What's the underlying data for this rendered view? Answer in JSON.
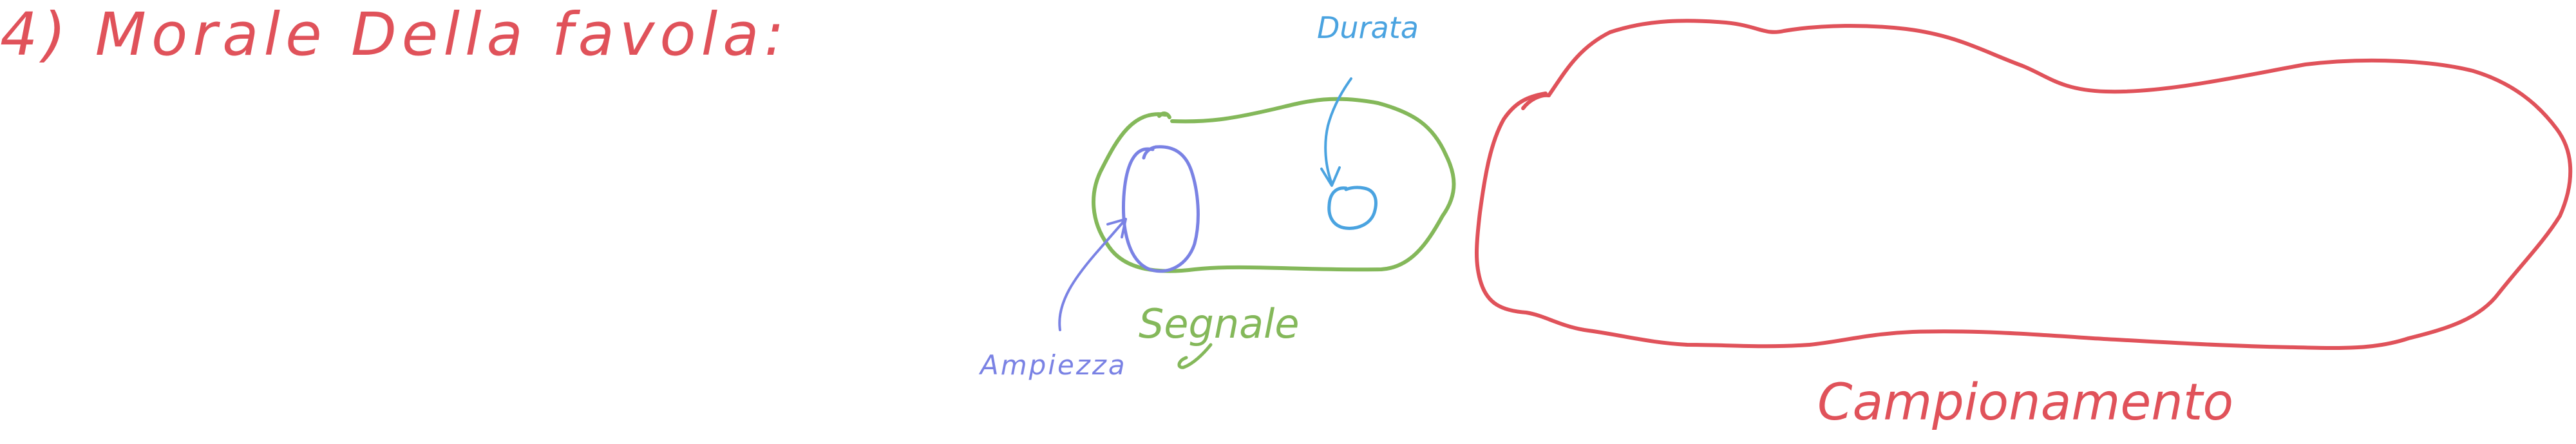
{
  "note": {
    "title": "4) Morale Della favola:",
    "labels": {
      "durata": "Durata",
      "segnale": "Segnale",
      "ampiezza": "Ampiezza",
      "campionamento": "Campionamento"
    }
  },
  "colors": {
    "red": "#e0525a",
    "green": "#84b85a",
    "blue": "#4aa3e0",
    "purple": "#7a82e4"
  }
}
